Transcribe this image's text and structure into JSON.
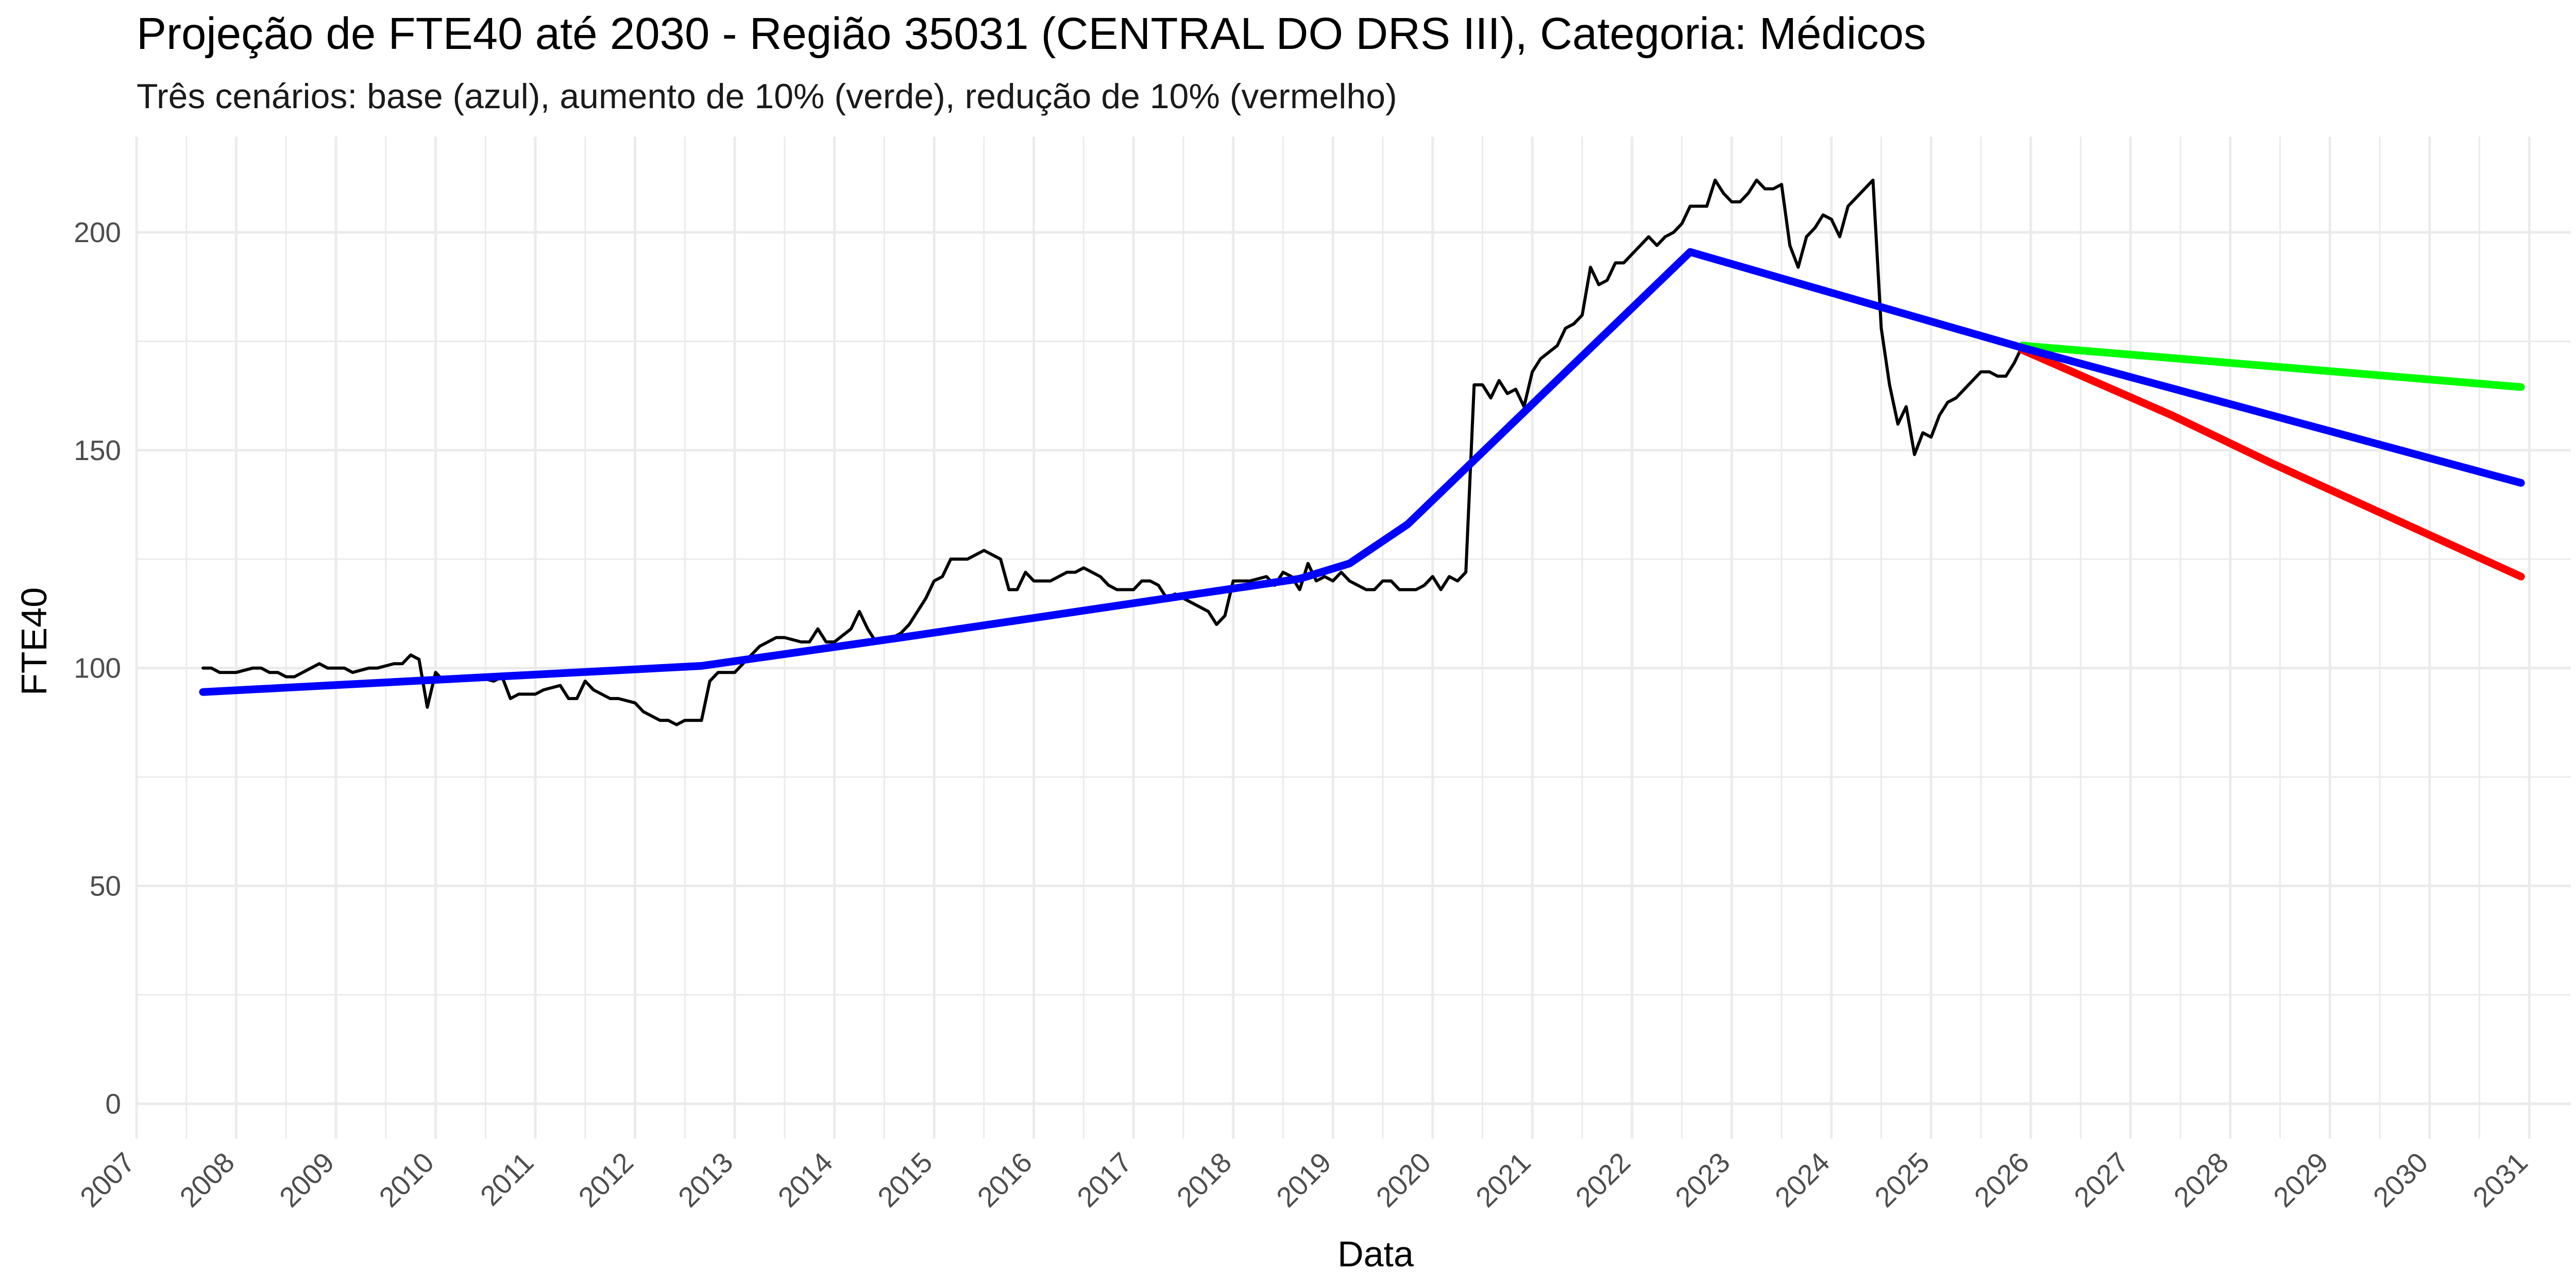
{
  "chart_data": {
    "type": "line",
    "title": "Projeção de FTE40 até 2030 - Região 35031 (CENTRAL DO DRS III), Categoria: Médicos",
    "subtitle": "Três cenários: base (azul), aumento de 10% (verde), redução de 10% (vermelho)",
    "xlabel": "Data",
    "ylabel": "FTE40",
    "x_type": "date",
    "xlim": [
      "2007-01-01",
      "2031-06-01"
    ],
    "ylim": [
      -8,
      222
    ],
    "grid": true,
    "legend": "none",
    "x_ticks": [
      "2007",
      "2008",
      "2009",
      "2010",
      "2011",
      "2012",
      "2013",
      "2014",
      "2015",
      "2016",
      "2017",
      "2018",
      "2019",
      "2020",
      "2021",
      "2022",
      "2023",
      "2024",
      "2025",
      "2026",
      "2027",
      "2028",
      "2029",
      "2030",
      "2031"
    ],
    "y_ticks": [
      "0",
      "50",
      "100",
      "150",
      "200"
    ],
    "colors": {
      "observed": "#000000",
      "base": "#0000ff",
      "increase": "#00ff00",
      "decrease": "#ff0000",
      "grid": "#ebebeb"
    },
    "series": [
      {
        "key": "observed",
        "color": "#000000",
        "points": [
          [
            "2007-09-01",
            100
          ],
          [
            "2007-10-01",
            100
          ],
          [
            "2007-11-01",
            99
          ],
          [
            "2007-12-01",
            99
          ],
          [
            "2008-01-01",
            99
          ],
          [
            "2008-03-01",
            100
          ],
          [
            "2008-04-01",
            100
          ],
          [
            "2008-05-01",
            99
          ],
          [
            "2008-06-01",
            99
          ],
          [
            "2008-07-01",
            98
          ],
          [
            "2008-08-01",
            98
          ],
          [
            "2008-09-01",
            99
          ],
          [
            "2008-11-01",
            101
          ],
          [
            "2008-12-01",
            100
          ],
          [
            "2009-02-01",
            100
          ],
          [
            "2009-03-01",
            99
          ],
          [
            "2009-05-01",
            100
          ],
          [
            "2009-06-01",
            100
          ],
          [
            "2009-08-01",
            101
          ],
          [
            "2009-09-01",
            101
          ],
          [
            "2009-10-01",
            103
          ],
          [
            "2009-11-01",
            102
          ],
          [
            "2009-12-01",
            91
          ],
          [
            "2010-01-01",
            99
          ],
          [
            "2010-02-01",
            97
          ],
          [
            "2010-04-01",
            98
          ],
          [
            "2010-06-01",
            98
          ],
          [
            "2010-08-01",
            97
          ],
          [
            "2010-09-01",
            98
          ],
          [
            "2010-10-01",
            93
          ],
          [
            "2010-11-01",
            94
          ],
          [
            "2011-01-01",
            94
          ],
          [
            "2011-02-01",
            95
          ],
          [
            "2011-04-01",
            96
          ],
          [
            "2011-05-01",
            93
          ],
          [
            "2011-06-01",
            93
          ],
          [
            "2011-07-01",
            97
          ],
          [
            "2011-08-01",
            95
          ],
          [
            "2011-10-01",
            93
          ],
          [
            "2011-11-01",
            93
          ],
          [
            "2012-01-01",
            92
          ],
          [
            "2012-02-01",
            90
          ],
          [
            "2012-04-01",
            88
          ],
          [
            "2012-05-01",
            88
          ],
          [
            "2012-06-01",
            87
          ],
          [
            "2012-07-01",
            88
          ],
          [
            "2012-08-01",
            88
          ],
          [
            "2012-09-01",
            88
          ],
          [
            "2012-10-01",
            97
          ],
          [
            "2012-11-01",
            99
          ],
          [
            "2013-01-01",
            99
          ],
          [
            "2013-02-01",
            101
          ],
          [
            "2013-03-01",
            103
          ],
          [
            "2013-04-01",
            105
          ],
          [
            "2013-05-01",
            106
          ],
          [
            "2013-06-01",
            107
          ],
          [
            "2013-07-01",
            107
          ],
          [
            "2013-09-01",
            106
          ],
          [
            "2013-10-01",
            106
          ],
          [
            "2013-11-01",
            109
          ],
          [
            "2013-12-01",
            106
          ],
          [
            "2014-01-01",
            106
          ],
          [
            "2014-03-01",
            109
          ],
          [
            "2014-04-01",
            113
          ],
          [
            "2014-05-01",
            109
          ],
          [
            "2014-06-01",
            106
          ],
          [
            "2014-07-01",
            106
          ],
          [
            "2014-09-01",
            108
          ],
          [
            "2014-10-01",
            110
          ],
          [
            "2014-12-01",
            116
          ],
          [
            "2015-01-01",
            120
          ],
          [
            "2015-02-01",
            121
          ],
          [
            "2015-03-01",
            125
          ],
          [
            "2015-05-01",
            125
          ],
          [
            "2015-07-01",
            127
          ],
          [
            "2015-09-01",
            125
          ],
          [
            "2015-10-01",
            118
          ],
          [
            "2015-11-01",
            118
          ],
          [
            "2015-12-01",
            122
          ],
          [
            "2016-01-01",
            120
          ],
          [
            "2016-03-01",
            120
          ],
          [
            "2016-04-01",
            121
          ],
          [
            "2016-05-01",
            122
          ],
          [
            "2016-06-01",
            122
          ],
          [
            "2016-07-01",
            123
          ],
          [
            "2016-09-01",
            121
          ],
          [
            "2016-10-01",
            119
          ],
          [
            "2016-11-01",
            118
          ],
          [
            "2017-01-01",
            118
          ],
          [
            "2017-02-01",
            120
          ],
          [
            "2017-03-01",
            120
          ],
          [
            "2017-04-01",
            119
          ],
          [
            "2017-05-01",
            116
          ],
          [
            "2017-06-01",
            117
          ],
          [
            "2017-08-01",
            115
          ],
          [
            "2017-10-01",
            113
          ],
          [
            "2017-11-01",
            110
          ],
          [
            "2017-12-01",
            112
          ],
          [
            "2018-01-01",
            120
          ],
          [
            "2018-03-01",
            120
          ],
          [
            "2018-05-01",
            121
          ],
          [
            "2018-06-01",
            119
          ],
          [
            "2018-07-01",
            122
          ],
          [
            "2018-08-01",
            121
          ],
          [
            "2018-09-01",
            118
          ],
          [
            "2018-10-01",
            124
          ],
          [
            "2018-11-01",
            120
          ],
          [
            "2018-12-01",
            121
          ],
          [
            "2019-01-01",
            120
          ],
          [
            "2019-02-01",
            122
          ],
          [
            "2019-03-01",
            120
          ],
          [
            "2019-05-01",
            118
          ],
          [
            "2019-06-01",
            118
          ],
          [
            "2019-07-01",
            120
          ],
          [
            "2019-08-01",
            120
          ],
          [
            "2019-09-01",
            118
          ],
          [
            "2019-11-01",
            118
          ],
          [
            "2019-12-01",
            119
          ],
          [
            "2020-01-01",
            121
          ],
          [
            "2020-02-01",
            118
          ],
          [
            "2020-03-01",
            121
          ],
          [
            "2020-04-01",
            120
          ],
          [
            "2020-05-01",
            122
          ],
          [
            "2020-06-01",
            165
          ],
          [
            "2020-07-01",
            165
          ],
          [
            "2020-08-01",
            162
          ],
          [
            "2020-09-01",
            166
          ],
          [
            "2020-10-01",
            163
          ],
          [
            "2020-11-01",
            164
          ],
          [
            "2020-12-01",
            160
          ],
          [
            "2021-01-01",
            168
          ],
          [
            "2021-02-01",
            171
          ],
          [
            "2021-04-01",
            174
          ],
          [
            "2021-05-01",
            178
          ],
          [
            "2021-06-01",
            179
          ],
          [
            "2021-07-01",
            181
          ],
          [
            "2021-08-01",
            192
          ],
          [
            "2021-09-01",
            188
          ],
          [
            "2021-10-01",
            189
          ],
          [
            "2021-11-01",
            193
          ],
          [
            "2021-12-01",
            193
          ],
          [
            "2022-02-01",
            197
          ],
          [
            "2022-03-01",
            199
          ],
          [
            "2022-04-01",
            197
          ],
          [
            "2022-05-01",
            199
          ],
          [
            "2022-06-01",
            200
          ],
          [
            "2022-07-01",
            202
          ],
          [
            "2022-08-01",
            206
          ],
          [
            "2022-10-01",
            206
          ],
          [
            "2022-11-01",
            212
          ],
          [
            "2022-12-01",
            209
          ],
          [
            "2023-01-01",
            207
          ],
          [
            "2023-02-01",
            207
          ],
          [
            "2023-03-01",
            209
          ],
          [
            "2023-04-01",
            212
          ],
          [
            "2023-05-01",
            210
          ],
          [
            "2023-06-01",
            210
          ],
          [
            "2023-07-01",
            211
          ],
          [
            "2023-08-01",
            197
          ],
          [
            "2023-09-01",
            192
          ],
          [
            "2023-10-01",
            199
          ],
          [
            "2023-11-01",
            201
          ],
          [
            "2023-12-01",
            204
          ],
          [
            "2024-01-01",
            203
          ],
          [
            "2024-02-01",
            199
          ],
          [
            "2024-03-01",
            206
          ],
          [
            "2024-05-01",
            210
          ],
          [
            "2024-06-01",
            212
          ],
          [
            "2024-07-01",
            178
          ],
          [
            "2024-08-01",
            165
          ],
          [
            "2024-09-01",
            156
          ],
          [
            "2024-10-01",
            160
          ],
          [
            "2024-11-01",
            149
          ],
          [
            "2024-12-01",
            154
          ],
          [
            "2025-01-01",
            153
          ],
          [
            "2025-02-01",
            158
          ],
          [
            "2025-03-01",
            161
          ],
          [
            "2025-04-01",
            162
          ],
          [
            "2025-05-01",
            164
          ],
          [
            "2025-06-01",
            166
          ],
          [
            "2025-07-01",
            168
          ],
          [
            "2025-08-01",
            168
          ],
          [
            "2025-09-01",
            167
          ],
          [
            "2025-10-01",
            167
          ],
          [
            "2025-11-01",
            170
          ],
          [
            "2025-12-01",
            174
          ]
        ]
      },
      {
        "key": "base",
        "color": "#0000ff",
        "points": [
          [
            "2007-09-01",
            94.5
          ],
          [
            "2012-09-01",
            100.5
          ],
          [
            "2014-09-01",
            107
          ],
          [
            "2018-09-01",
            120.5
          ],
          [
            "2019-03-01",
            124
          ],
          [
            "2019-10-01",
            133
          ],
          [
            "2022-08-01",
            195.5
          ],
          [
            "2025-12-01",
            173.5
          ],
          [
            "2030-12-01",
            142.5
          ]
        ]
      },
      {
        "key": "increase",
        "color": "#00ff00",
        "points": [
          [
            "2025-12-01",
            174
          ],
          [
            "2030-12-01",
            164.5
          ]
        ]
      },
      {
        "key": "decrease",
        "color": "#ff0000",
        "points": [
          [
            "2025-12-01",
            173
          ],
          [
            "2027-06-01",
            158
          ],
          [
            "2028-06-01",
            147
          ],
          [
            "2030-12-01",
            121
          ]
        ]
      }
    ]
  }
}
